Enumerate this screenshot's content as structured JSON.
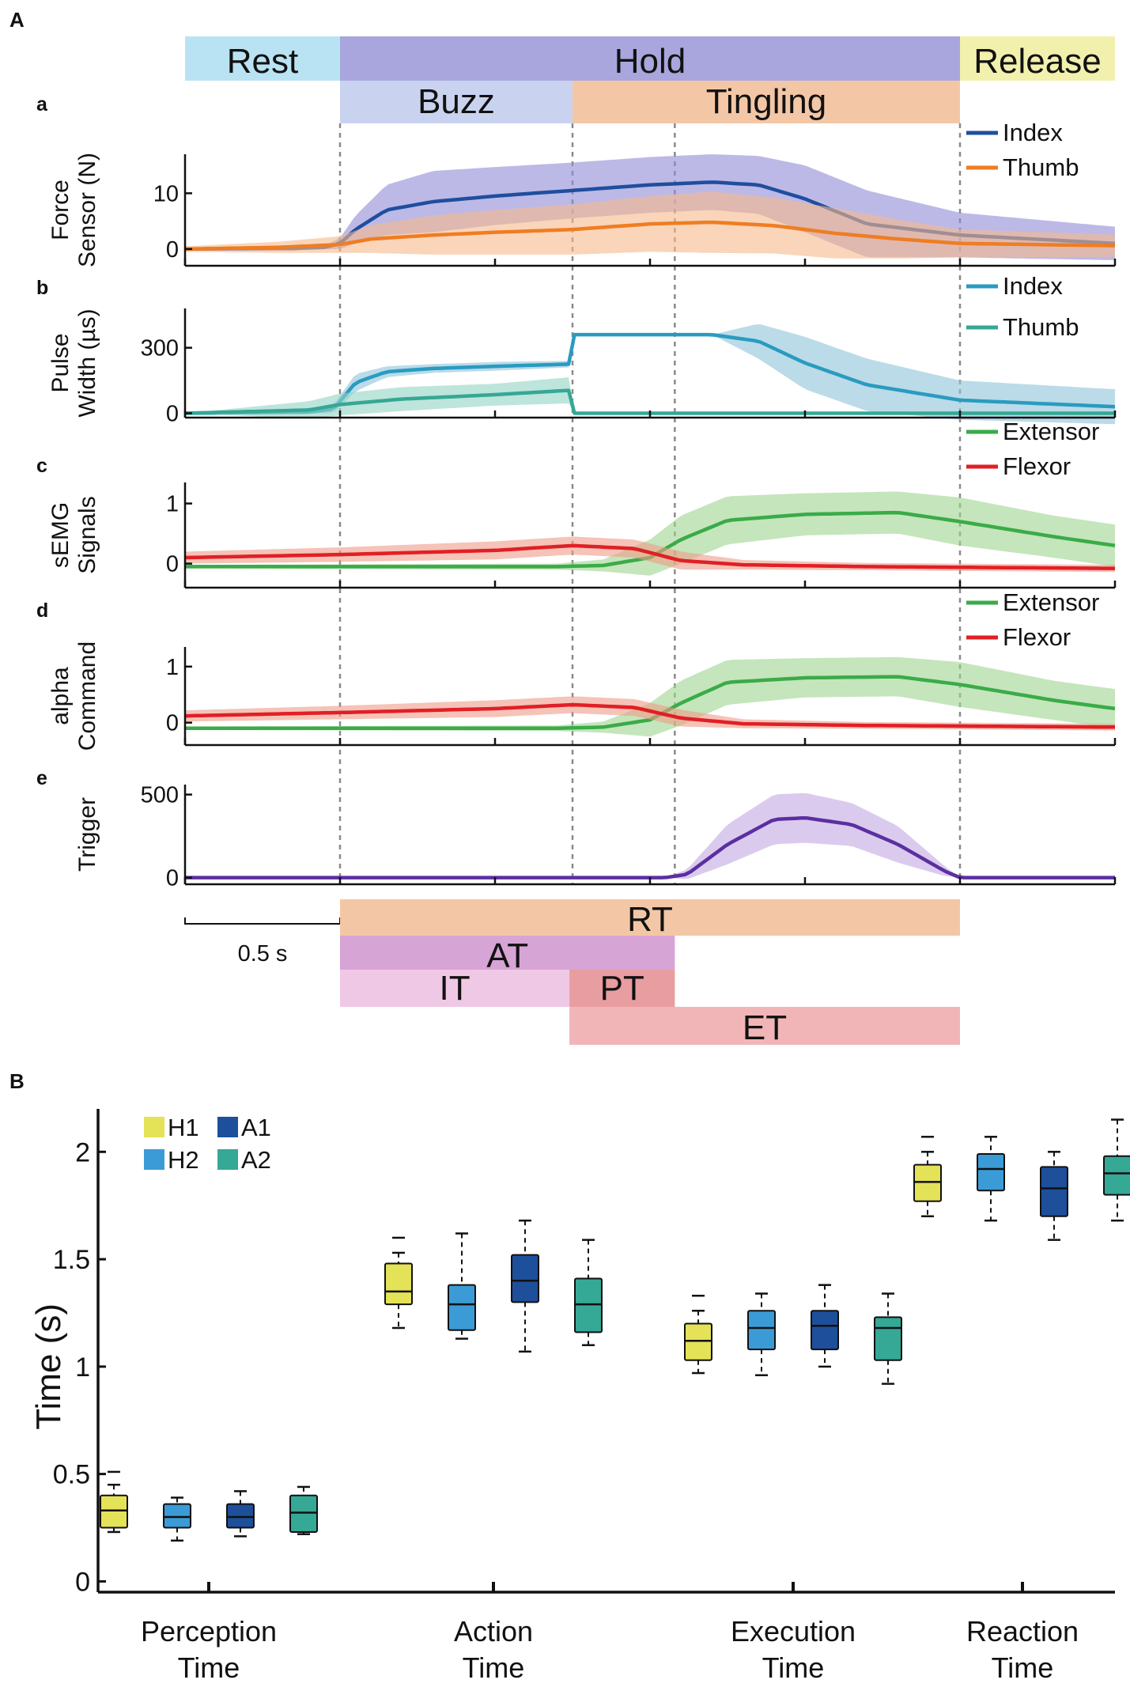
{
  "chart_data": {
    "type": "composite",
    "panel_a": {
      "label": "A",
      "phases": [
        {
          "label": "Rest",
          "color": "#b9e3f2",
          "start": 0.0,
          "end": 0.5
        },
        {
          "label": "Hold",
          "color": "#a8a6dc",
          "start": 0.5,
          "end": 2.5
        },
        {
          "label": "Release",
          "color": "#f2f0ad",
          "start": 2.5,
          "end": 3.0
        }
      ],
      "subphases": [
        {
          "label": "Buzz",
          "color": "#c9d3ef",
          "start": 0.5,
          "end": 1.25
        },
        {
          "label": "Tingling",
          "color": "#f3c7a6",
          "start": 1.25,
          "end": 2.5
        }
      ],
      "time_range": [
        0,
        3.0
      ],
      "vlines": [
        0.5,
        1.25,
        1.58,
        2.5
      ],
      "scale_bar": "0.5 s",
      "timing_segments": [
        {
          "label": "RT",
          "start": 0.5,
          "end": 2.5,
          "color": "#f3c7a6",
          "alpha": 1
        },
        {
          "label": "AT",
          "start": 0.5,
          "end": 1.58,
          "color": "#d7a4d6",
          "alpha": 1
        },
        {
          "label": "IT",
          "start": 0.5,
          "end": 1.24,
          "color": "#efc8e6",
          "alpha": 1
        },
        {
          "label": "PT",
          "start": 1.24,
          "end": 1.58,
          "color": "#e89da0",
          "alpha": 1
        },
        {
          "label": "ET",
          "start": 1.24,
          "end": 2.5,
          "color": "#efa8ab",
          "alpha": 0.85
        }
      ],
      "subplots": [
        {
          "letter": "a",
          "ylabel": [
            "Force",
            "Sensor (N)"
          ],
          "ylim": [
            -3,
            17
          ],
          "yticks": [
            0,
            10
          ],
          "legend_pos": "top-right",
          "series": [
            {
              "name": "Index",
              "color": "#1f4e9e",
              "band_color": "#8f8ad6",
              "t": [
                0,
                0.35,
                0.45,
                0.5,
                0.55,
                0.65,
                0.8,
                1.0,
                1.25,
                1.5,
                1.7,
                1.85,
                2.0,
                2.2,
                2.5,
                3.0
              ],
              "mean": [
                0,
                0.1,
                0.3,
                1,
                3.5,
                7,
                8.5,
                9.5,
                10.5,
                11.5,
                12,
                11.5,
                9,
                4.5,
                2.5,
                1
              ],
              "sd": [
                0,
                0.1,
                0.3,
                1,
                2.5,
                4.5,
                5.5,
                5.2,
                5,
                5,
                5,
                5.2,
                6,
                6,
                4,
                3
              ]
            },
            {
              "name": "Thumb",
              "color": "#ef7d22",
              "band_color": "#f7b98c",
              "t": [
                0,
                0.3,
                0.5,
                0.6,
                0.8,
                1.0,
                1.25,
                1.5,
                1.7,
                1.9,
                2.1,
                2.3,
                2.5,
                3.0
              ],
              "mean": [
                0,
                0.3,
                0.8,
                1.8,
                2.5,
                3,
                3.5,
                4.5,
                4.8,
                4.2,
                2.8,
                1.8,
                1,
                0.6
              ],
              "sd": [
                0.5,
                1,
                1.5,
                2.5,
                3.5,
                4,
                4.5,
                5,
                5.5,
                5,
                4.5,
                3.5,
                2.5,
                2
              ]
            }
          ]
        },
        {
          "letter": "b",
          "ylabel": [
            "Pulse",
            "Width (µs)"
          ],
          "ylim": [
            -20,
            480
          ],
          "yticks": [
            0,
            300
          ],
          "legend_pos": "top-right",
          "series": [
            {
              "name": "Index",
              "color": "#2a9bc0",
              "band_color": "#8ec3d8",
              "t": [
                0,
                0.4,
                0.48,
                0.55,
                0.65,
                0.8,
                1.0,
                1.24,
                1.245,
                1.7,
                1.85,
                2.0,
                2.2,
                2.5,
                3.0
              ],
              "mean": [
                0,
                5,
                20,
                140,
                190,
                205,
                215,
                225,
                360,
                360,
                330,
                230,
                130,
                60,
                30
              ],
              "sd": [
                0,
                5,
                20,
                40,
                25,
                20,
                20,
                15,
                0,
                0,
                80,
                120,
                120,
                90,
                80
              ]
            },
            {
              "name": "Thumb",
              "color": "#35a894",
              "band_color": "#93d3c3",
              "t": [
                0,
                0.4,
                0.5,
                0.7,
                1.0,
                1.24,
                1.245,
                3.0
              ],
              "mean": [
                0,
                15,
                40,
                65,
                85,
                105,
                0,
                0
              ],
              "sd": [
                0,
                40,
                50,
                55,
                50,
                60,
                0,
                0
              ]
            }
          ]
        },
        {
          "letter": "c",
          "ylabel": [
            "sEMG",
            "Signals"
          ],
          "ylim": [
            -0.4,
            1.35
          ],
          "yticks": [
            0,
            1
          ],
          "legend_pos": "top-right",
          "series": [
            {
              "name": "Extensor",
              "color": "#3aab48",
              "band_color": "#9ed48f",
              "t": [
                0,
                1.2,
                1.35,
                1.5,
                1.6,
                1.75,
                2.0,
                2.3,
                2.5,
                2.8,
                3.0
              ],
              "mean": [
                -0.05,
                -0.05,
                -0.03,
                0.1,
                0.4,
                0.72,
                0.82,
                0.85,
                0.7,
                0.45,
                0.3
              ],
              "sd": [
                0.03,
                0.05,
                0.1,
                0.3,
                0.4,
                0.4,
                0.35,
                0.35,
                0.4,
                0.35,
                0.35
              ]
            },
            {
              "name": "Flexor",
              "color": "#e11f26",
              "band_color": "#ef9b87",
              "t": [
                0,
                0.5,
                1.0,
                1.25,
                1.45,
                1.6,
                1.8,
                2.2,
                3.0
              ],
              "mean": [
                0.1,
                0.15,
                0.22,
                0.3,
                0.25,
                0.05,
                -0.02,
                -0.05,
                -0.08
              ],
              "sd": [
                0.1,
                0.12,
                0.15,
                0.15,
                0.15,
                0.15,
                0.08,
                0.06,
                0.06
              ]
            }
          ]
        },
        {
          "letter": "d",
          "ylabel": [
            "alpha",
            "Command"
          ],
          "ylim": [
            -0.4,
            1.35
          ],
          "yticks": [
            0,
            1
          ],
          "legend_pos": "top-right",
          "series": [
            {
              "name": "Extensor",
              "color": "#3aab48",
              "band_color": "#9ed48f",
              "t": [
                0,
                1.2,
                1.35,
                1.5,
                1.6,
                1.75,
                2.0,
                2.3,
                2.5,
                2.8,
                3.0
              ],
              "mean": [
                -0.1,
                -0.1,
                -0.08,
                0.05,
                0.35,
                0.72,
                0.8,
                0.82,
                0.68,
                0.4,
                0.25
              ],
              "sd": [
                0.03,
                0.05,
                0.1,
                0.3,
                0.4,
                0.4,
                0.35,
                0.35,
                0.4,
                0.35,
                0.35
              ]
            },
            {
              "name": "Flexor",
              "color": "#e11f26",
              "band_color": "#ef9b87",
              "t": [
                0,
                0.5,
                1.0,
                1.25,
                1.45,
                1.6,
                1.8,
                2.2,
                3.0
              ],
              "mean": [
                0.12,
                0.18,
                0.25,
                0.32,
                0.27,
                0.08,
                -0.02,
                -0.05,
                -0.08
              ],
              "sd": [
                0.1,
                0.12,
                0.15,
                0.15,
                0.15,
                0.15,
                0.08,
                0.06,
                0.06
              ]
            }
          ]
        },
        {
          "letter": "e",
          "ylabel": [
            "Trigger"
          ],
          "ylim": [
            -40,
            560
          ],
          "yticks": [
            0,
            500
          ],
          "legend_pos": "none",
          "series": [
            {
              "name": "Trigger",
              "color": "#5b2fa0",
              "band_color": "#c2a9e3",
              "t": [
                0,
                1.55,
                1.62,
                1.75,
                1.9,
                2.0,
                2.15,
                2.3,
                2.45,
                2.5,
                3.0
              ],
              "mean": [
                0,
                0,
                20,
                200,
                350,
                360,
                320,
                200,
                40,
                0,
                0
              ],
              "sd": [
                0,
                0,
                30,
                120,
                150,
                150,
                130,
                110,
                30,
                0,
                0
              ]
            }
          ]
        }
      ]
    },
    "panel_b": {
      "label": "B",
      "type": "box",
      "ylabel": "Time (s)",
      "ylim": [
        -0.05,
        2.2
      ],
      "yticks": [
        0,
        0.5,
        1,
        1.5,
        2
      ],
      "ytick_labels": [
        "0",
        "0.5",
        "1",
        "1.5",
        "2"
      ],
      "categories": [
        "Perception Time",
        "Action Time",
        "Execution Time",
        "Reaction Time"
      ],
      "category_lines": [
        [
          "Perception",
          "Time"
        ],
        [
          "Action",
          "Time"
        ],
        [
          "Execution",
          "Time"
        ],
        [
          "Reaction",
          "Time"
        ]
      ],
      "legend": [
        {
          "name": "H1",
          "color": "#e4e257"
        },
        {
          "name": "A1",
          "color": "#1d4f9b"
        },
        {
          "name": "H2",
          "color": "#3b9bd6"
        },
        {
          "name": "A2",
          "color": "#35a896"
        }
      ],
      "groups": [
        {
          "category": "Perception Time",
          "boxes": [
            {
              "name": "H1",
              "q1": 0.25,
              "median": 0.33,
              "q3": 0.4,
              "whisker_low": 0.23,
              "whisker_high": 0.45,
              "outlier_high": 0.51
            },
            {
              "name": "H2",
              "q1": 0.25,
              "median": 0.3,
              "q3": 0.36,
              "whisker_low": 0.19,
              "whisker_high": 0.39
            },
            {
              "name": "A1",
              "q1": 0.25,
              "median": 0.3,
              "q3": 0.36,
              "whisker_low": 0.21,
              "whisker_high": 0.42
            },
            {
              "name": "A2",
              "q1": 0.23,
              "median": 0.32,
              "q3": 0.4,
              "whisker_low": 0.22,
              "whisker_high": 0.44
            }
          ]
        },
        {
          "category": "Action Time",
          "boxes": [
            {
              "name": "H1",
              "q1": 1.29,
              "median": 1.35,
              "q3": 1.48,
              "whisker_low": 1.18,
              "whisker_high": 1.53,
              "outlier_high": 1.6
            },
            {
              "name": "H2",
              "q1": 1.17,
              "median": 1.29,
              "q3": 1.38,
              "whisker_low": 1.13,
              "whisker_high": 1.62
            },
            {
              "name": "A1",
              "q1": 1.3,
              "median": 1.4,
              "q3": 1.52,
              "whisker_low": 1.07,
              "whisker_high": 1.68
            },
            {
              "name": "A2",
              "q1": 1.16,
              "median": 1.29,
              "q3": 1.41,
              "whisker_low": 1.1,
              "whisker_high": 1.59
            }
          ]
        },
        {
          "category": "Execution Time",
          "boxes": [
            {
              "name": "H1",
              "q1": 1.03,
              "median": 1.12,
              "q3": 1.2,
              "whisker_low": 0.97,
              "whisker_high": 1.26,
              "outlier_high": 1.33
            },
            {
              "name": "H2",
              "q1": 1.08,
              "median": 1.18,
              "q3": 1.26,
              "whisker_low": 0.96,
              "whisker_high": 1.34
            },
            {
              "name": "A1",
              "q1": 1.08,
              "median": 1.19,
              "q3": 1.26,
              "whisker_low": 1.0,
              "whisker_high": 1.38
            },
            {
              "name": "A2",
              "q1": 1.03,
              "median": 1.18,
              "q3": 1.23,
              "whisker_low": 0.92,
              "whisker_high": 1.34
            }
          ]
        },
        {
          "category": "Reaction Time",
          "boxes": [
            {
              "name": "H1",
              "q1": 1.77,
              "median": 1.86,
              "q3": 1.94,
              "whisker_low": 1.7,
              "whisker_high": 2.0,
              "outlier_high": 2.07
            },
            {
              "name": "H2",
              "q1": 1.82,
              "median": 1.92,
              "q3": 1.99,
              "whisker_low": 1.68,
              "whisker_high": 2.07
            },
            {
              "name": "A1",
              "q1": 1.7,
              "median": 1.83,
              "q3": 1.93,
              "whisker_low": 1.59,
              "whisker_high": 2.0
            },
            {
              "name": "A2",
              "q1": 1.8,
              "median": 1.9,
              "q3": 1.98,
              "whisker_low": 1.68,
              "whisker_high": 2.15
            }
          ]
        }
      ]
    }
  }
}
